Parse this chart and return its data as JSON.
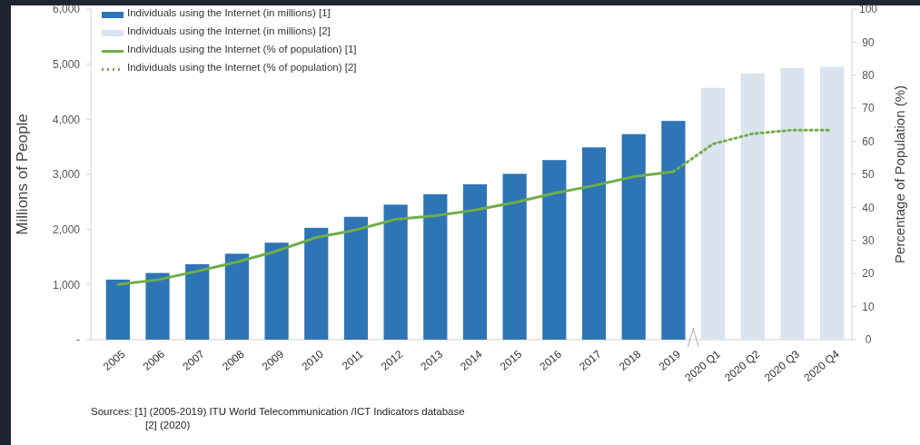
{
  "chart_data": {
    "type": "bar",
    "ylabel": "Millions of People",
    "y2label": "Percentage of Population (%)",
    "categories": [
      "2005",
      "2006",
      "2007",
      "2008",
      "2009",
      "2010",
      "2011",
      "2012",
      "2013",
      "2014",
      "2015",
      "2016",
      "2017",
      "2018",
      "2019",
      "2020 Q1",
      "2020 Q2",
      "2020 Q3",
      "2020 Q4"
    ],
    "series": [
      {
        "name": "Individuals using the Internet (in millions) [1]",
        "color": "#2e75b6",
        "values": [
          1090,
          1210,
          1370,
          1560,
          1760,
          2030,
          2230,
          2450,
          2640,
          2820,
          3010,
          3260,
          3490,
          3730,
          3970,
          null,
          null,
          null,
          null
        ]
      },
      {
        "name": "Individuals using the Internet (in millions) [2]",
        "color": "#d9e4ef",
        "values": [
          null,
          null,
          null,
          null,
          null,
          null,
          null,
          null,
          null,
          null,
          null,
          null,
          null,
          null,
          null,
          4570,
          4830,
          4930,
          4950
        ]
      },
      {
        "name": "Individuals using the Internet (% of population) [1]",
        "type": "line",
        "axis": "y2",
        "color": "#70ad47",
        "line_style": "solid",
        "values": [
          16.7,
          18.1,
          20.7,
          23.5,
          26.8,
          30.9,
          33.2,
          36.4,
          37.5,
          39.2,
          41.5,
          44.3,
          46.6,
          49.3,
          50.8,
          null,
          null,
          null,
          null
        ]
      },
      {
        "name": "Individuals using the Internet (% of population) [2]",
        "type": "line",
        "axis": "y2",
        "color": "#70ad47",
        "line_style": "dotted",
        "values": [
          null,
          null,
          null,
          null,
          null,
          null,
          null,
          null,
          null,
          null,
          null,
          null,
          null,
          null,
          50.8,
          59.2,
          62.3,
          63.4,
          63.4
        ]
      }
    ],
    "ylim": [
      0,
      6000
    ],
    "yticks": [
      {
        "value": 0,
        "label": "-"
      },
      {
        "value": 1000,
        "label": "1,000"
      },
      {
        "value": 2000,
        "label": "2,000"
      },
      {
        "value": 3000,
        "label": "3,000"
      },
      {
        "value": 4000,
        "label": "4,000"
      },
      {
        "value": 5000,
        "label": "5,000"
      },
      {
        "value": 6000,
        "label": "6,000"
      }
    ],
    "y2lim": [
      0,
      100
    ],
    "y2ticks": [
      0,
      10,
      20,
      30,
      40,
      50,
      60,
      70,
      80,
      90,
      100
    ],
    "grid": false,
    "legend": "top left",
    "marker": "none",
    "annotations": [
      "Sources: [1] (2005-2019) ITU World Telecommunication /ICT Indicators database",
      "[2] (2020)"
    ]
  }
}
